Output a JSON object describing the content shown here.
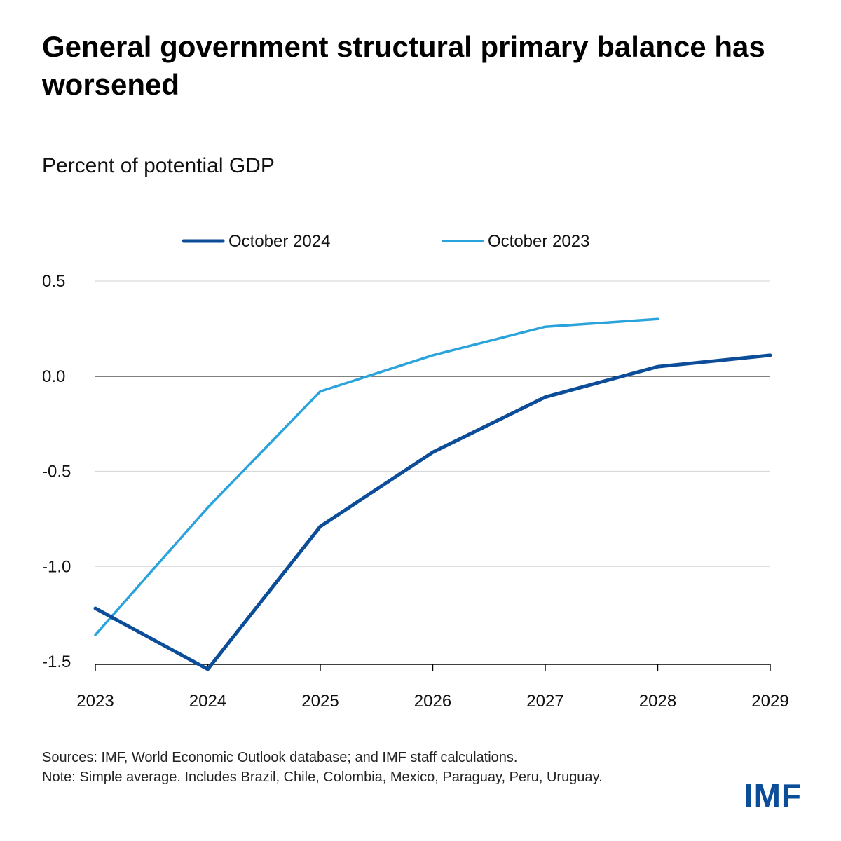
{
  "header": {
    "title": "General government structural primary balance has worsened",
    "subtitle": "Percent of potential GDP"
  },
  "colors": {
    "october_2024": "#0c4d99",
    "october_2023": "#2aa3dc",
    "gridline": "#d9d9d9",
    "zero_line": "#000000",
    "logo": "#0c4d99"
  },
  "chart_data": {
    "type": "line",
    "title": "General government structural primary balance has worsened",
    "ylabel": "Percent of potential GDP",
    "xlabel": "",
    "x": [
      2023,
      2024,
      2025,
      2026,
      2027,
      2028,
      2029
    ],
    "x_tick_labels": [
      "2023",
      "2024",
      "2025",
      "2026",
      "2027",
      "2028",
      "2029"
    ],
    "ylim": [
      -1.5,
      0.5
    ],
    "y_ticks": [
      0.5,
      0.0,
      -0.5,
      -1.0,
      -1.5
    ],
    "y_tick_labels": [
      "0.5",
      "0.0",
      "-0.5",
      "-1.0",
      "-1.5"
    ],
    "grid": true,
    "legend_position": "top-center",
    "series": [
      {
        "name": "October 2024",
        "color_key": "october_2024",
        "values": [
          -1.22,
          -1.54,
          -0.79,
          -0.4,
          -0.11,
          0.05,
          0.11
        ]
      },
      {
        "name": "October 2023",
        "color_key": "october_2023",
        "values": [
          -1.36,
          -0.69,
          -0.08,
          0.11,
          0.26,
          0.3,
          null
        ]
      }
    ]
  },
  "footer": {
    "sources": "Sources: IMF, World Economic Outlook database; and IMF staff calculations.",
    "note": "Note: Simple average. Includes Brazil, Chile, Colombia, Mexico, Paraguay, Peru, Uruguay.",
    "logo_text": "IMF"
  }
}
